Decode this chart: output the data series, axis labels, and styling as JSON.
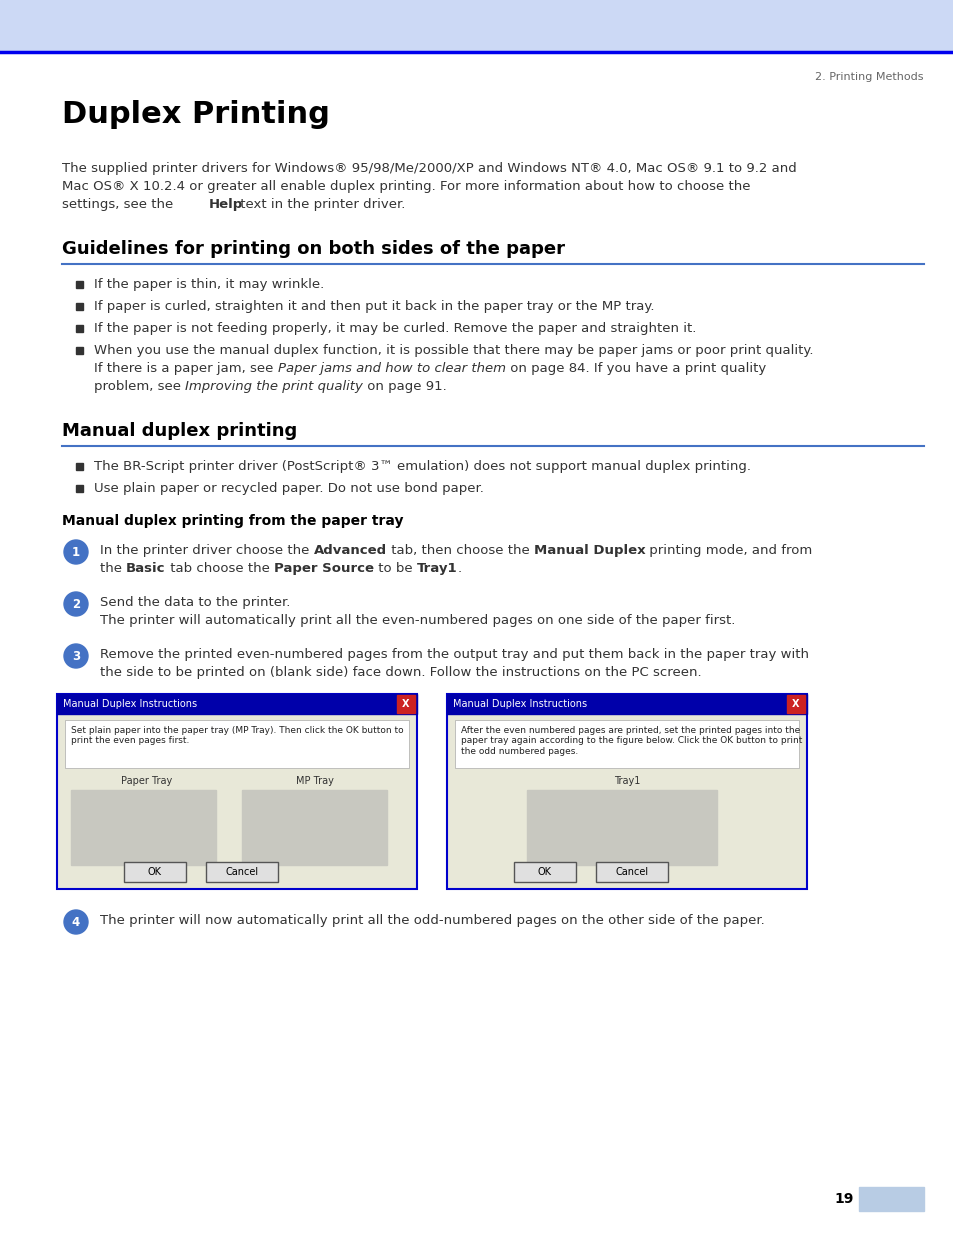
{
  "page_bg": "#ffffff",
  "header_bg": "#ccd9f5",
  "header_line_color": "#0000ee",
  "page_num_text": "2. Printing Methods",
  "page_num_color": "#666666",
  "title": "Duplex Printing",
  "title_color": "#000000",
  "section1_title": "Guidelines for printing on both sides of the paper",
  "section_line_color": "#4472c4",
  "section2_title": "Manual duplex printing",
  "subsection_title": "Manual duplex printing from the paper tray",
  "step_circle_color": "#4472c4",
  "step_number_color": "#ffffff",
  "step4_text": "The printer will now automatically print all the odd-numbered pages on the other side of the paper.",
  "page_number": "19",
  "page_number_color": "#000000",
  "page_number_bg": "#b8cce4",
  "font_color": "#333333",
  "bullet_color": "#333333"
}
